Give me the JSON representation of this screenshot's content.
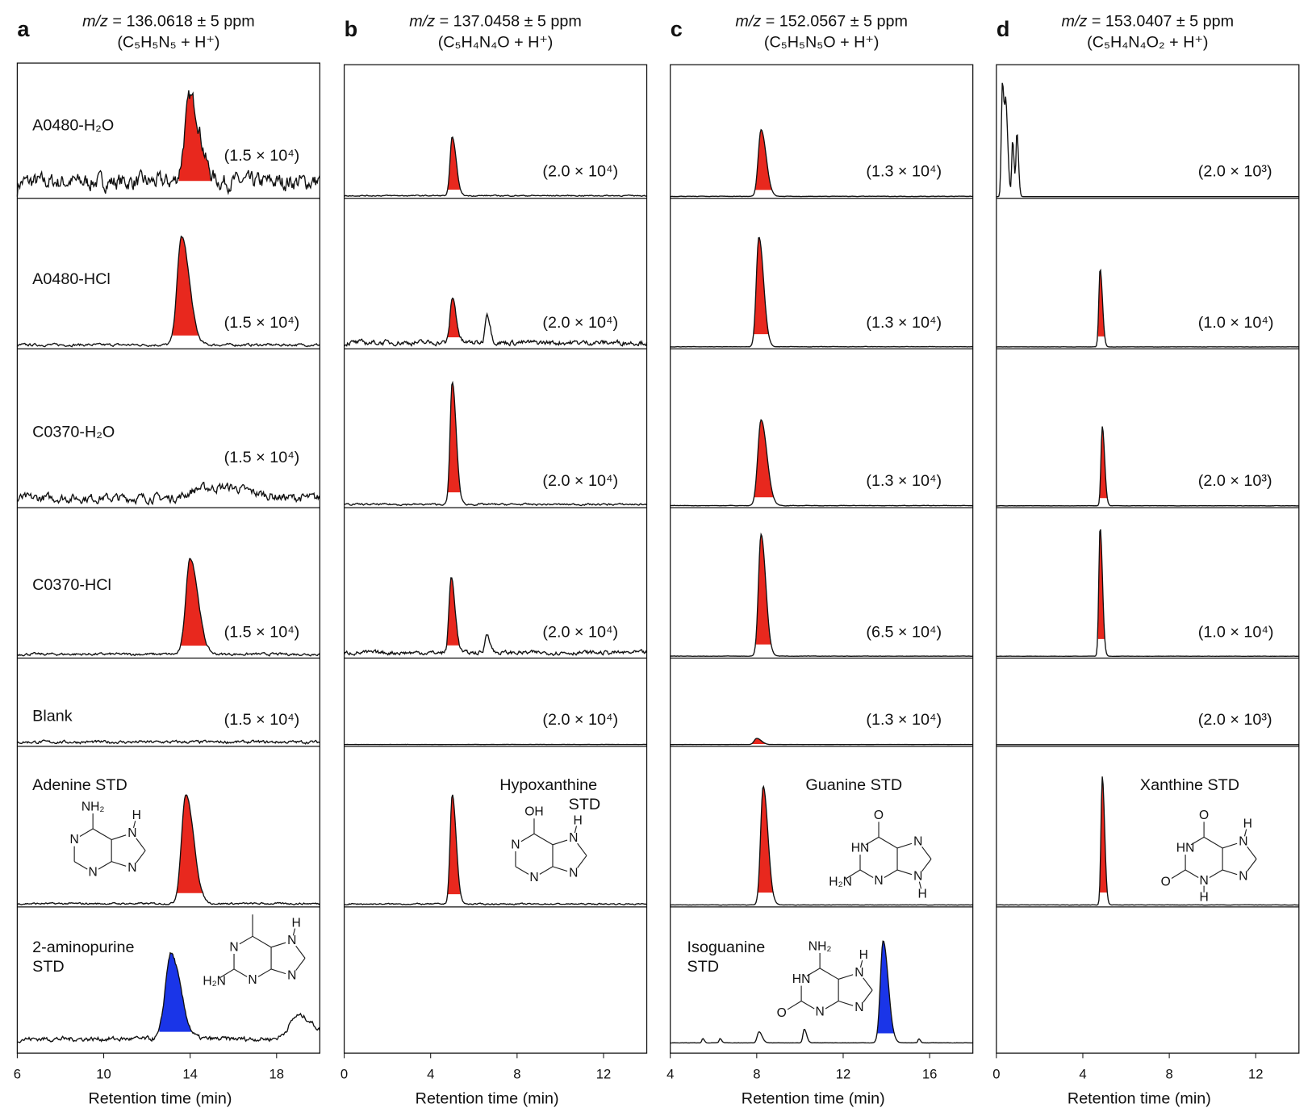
{
  "chart_data": [
    {
      "type": "line",
      "panel_letter": "a",
      "title_italic": "m/z",
      "title": " = 136.0618 ± 5 ppm",
      "subtitle": "(C₅H₅N₅ + H⁺)",
      "xlabel": "Retention time (min)",
      "xlim": [
        6,
        20
      ],
      "xticks": [
        6,
        10,
        14,
        18
      ],
      "rows": [
        {
          "label": [
            "A0480-H₂O"
          ],
          "scale": "(1.5 × 10⁴)",
          "noise": 0.22,
          "peaks": [
            {
              "rt": 14.0,
              "h": 0.62,
              "w": 0.25,
              "fill": "#e8281e"
            }
          ]
        },
        {
          "label": [
            "A0480-HCl"
          ],
          "scale": "(1.5 × 10⁴)",
          "noise": 0.03,
          "peaks": [
            {
              "rt": 13.6,
              "h": 0.72,
              "w": 0.2,
              "fill": "#e8281e"
            }
          ]
        },
        {
          "label": [
            "C0370-H₂O"
          ],
          "scale": "(1.5 × 10⁴)",
          "noise": 0.1,
          "peaks": [
            {
              "rt": 14.5,
              "h": 0.06,
              "w": 0.5
            },
            {
              "rt": 16.0,
              "h": 0.05,
              "w": 0.6
            }
          ]
        },
        {
          "label": [
            "C0370-HCl"
          ],
          "scale": "(1.5 × 10⁴)",
          "noise": 0.03,
          "peaks": [
            {
              "rt": 14.0,
              "h": 0.64,
              "w": 0.2,
              "fill": "#e8281e"
            }
          ]
        },
        {
          "label": [
            "Blank"
          ],
          "scale": "(1.5 × 10⁴)",
          "noise": 0.06,
          "peaks": []
        },
        {
          "label": [
            "Adenine STD"
          ],
          "scale": "",
          "noise": 0.02,
          "peaks": [
            {
              "rt": 13.8,
              "h": 0.68,
              "w": 0.2,
              "fill": "#e8281e"
            }
          ],
          "structure": {
            "sub6": "NH₂",
            "N1": "N",
            "N3": "N",
            "N7": "N",
            "H7": "H",
            "N9": "N"
          }
        },
        {
          "label": [
            "2-aminopurine",
            "STD"
          ],
          "scale": "",
          "noise": 0.06,
          "peaks": [
            {
              "rt": 13.1,
              "h": 0.62,
              "w": 0.25,
              "fill": "#1a35e8"
            },
            {
              "rt": 19.0,
              "h": 0.17,
              "w": 0.4
            }
          ],
          "structure": {
            "sub2": "H₂N",
            "N1": "N",
            "N3": "N",
            "N7": "N",
            "H7": "H",
            "N9": "N"
          }
        }
      ]
    },
    {
      "type": "line",
      "panel_letter": "b",
      "title_italic": "m/z",
      "title": " = 137.0458 ± 5 ppm",
      "subtitle": "(C₅H₄N₄O + H⁺)",
      "xlabel": "Retention time (min)",
      "xlim": [
        0,
        14
      ],
      "xticks": [
        0,
        4,
        8,
        12
      ],
      "rows": [
        {
          "scale": "(2.0 × 10⁴)",
          "noise": 0.015,
          "peaks": [
            {
              "rt": 5.0,
              "h": 0.44,
              "w": 0.1,
              "fill": "#e8281e"
            }
          ]
        },
        {
          "scale": "(2.0 × 10⁴)",
          "noise": 0.06,
          "peaks": [
            {
              "rt": 5.0,
              "h": 0.3,
              "w": 0.1,
              "fill": "#e8281e"
            },
            {
              "rt": 6.6,
              "h": 0.2,
              "w": 0.08
            }
          ]
        },
        {
          "scale": "(2.0 × 10⁴)",
          "noise": 0.02,
          "peaks": [
            {
              "rt": 5.0,
              "h": 0.77,
              "w": 0.1,
              "fill": "#e8281e"
            }
          ]
        },
        {
          "scale": "(2.0 × 10⁴)",
          "noise": 0.05,
          "peaks": [
            {
              "rt": 4.95,
              "h": 0.5,
              "w": 0.1,
              "fill": "#e8281e"
            },
            {
              "rt": 6.6,
              "h": 0.13,
              "w": 0.08
            }
          ]
        },
        {
          "scale": "(2.0 × 10⁴)",
          "noise": 0.005,
          "peaks": []
        },
        {
          "label": [
            "Hypoxanthine",
            "STD"
          ],
          "scale": "",
          "noise": 0.015,
          "peaks": [
            {
              "rt": 5.0,
              "h": 0.68,
              "w": 0.1,
              "fill": "#e8281e"
            }
          ],
          "structure": {
            "sub6": "OH",
            "N1": "N",
            "N3": "N",
            "N7": "N",
            "H7": "H",
            "N9": "N"
          }
        },
        {
          "scale": "",
          "empty": true,
          "peaks": []
        }
      ]
    },
    {
      "type": "line",
      "panel_letter": "c",
      "title_italic": "m/z",
      "title": " = 152.0567 ± 5 ppm",
      "subtitle": "(C₅H₅N₅O + H⁺)",
      "xlabel": "Retention time (min)",
      "xlim": [
        4,
        18
      ],
      "xticks": [
        4,
        8,
        12,
        16
      ],
      "rows": [
        {
          "scale": "(1.3 × 10⁴)",
          "noise": 0.005,
          "peaks": [
            {
              "rt": 8.2,
              "h": 0.5,
              "w": 0.13,
              "fill": "#e8281e"
            }
          ]
        },
        {
          "scale": "(1.3 × 10⁴)",
          "noise": 0.005,
          "peaks": [
            {
              "rt": 8.1,
              "h": 0.73,
              "w": 0.12,
              "fill": "#e8281e"
            }
          ]
        },
        {
          "scale": "(1.3 × 10⁴)",
          "noise": 0.005,
          "peaks": [
            {
              "rt": 8.2,
              "h": 0.54,
              "w": 0.15,
              "fill": "#e8281e"
            }
          ]
        },
        {
          "scale": "(6.5 × 10⁴)",
          "noise": 0.004,
          "peaks": [
            {
              "rt": 8.2,
              "h": 0.81,
              "w": 0.12,
              "fill": "#e8281e"
            }
          ]
        },
        {
          "scale": "(1.3 × 10⁴)",
          "noise": 0.004,
          "peaks": [
            {
              "rt": 8.0,
              "h": 0.07,
              "w": 0.12,
              "fill": "#e8281e"
            }
          ]
        },
        {
          "label": [
            "Guanine STD"
          ],
          "scale": "",
          "noise": 0.004,
          "peaks": [
            {
              "rt": 8.3,
              "h": 0.74,
              "w": 0.12,
              "fill": "#e8281e"
            }
          ],
          "structure": {
            "sub6": "O",
            "N1": "HN",
            "sub2": "H₂N",
            "N3": "N",
            "N7": "N",
            "N9": "N",
            "H9": "H"
          }
        },
        {
          "label": [
            "Isoguanine",
            "STD"
          ],
          "scale": "",
          "noise": 0.004,
          "peaks": [
            {
              "rt": 13.85,
              "h": 0.74,
              "w": 0.13,
              "fill": "#1a35e8"
            },
            {
              "rt": 8.1,
              "h": 0.08,
              "w": 0.08
            },
            {
              "rt": 10.2,
              "h": 0.1,
              "w": 0.06
            },
            {
              "rt": 5.5,
              "h": 0.03,
              "w": 0.04
            },
            {
              "rt": 6.3,
              "h": 0.03,
              "w": 0.04
            },
            {
              "rt": 15.5,
              "h": 0.03,
              "w": 0.04
            }
          ],
          "structure": {
            "sub6": "NH₂",
            "N1": "HN",
            "sub2": "O",
            "N3": "N",
            "N7": "N",
            "H7": "H",
            "N9": "N"
          }
        }
      ]
    },
    {
      "type": "line",
      "panel_letter": "d",
      "title_italic": "m/z",
      "title": " = 153.0407 ± 5 ppm",
      "subtitle": "(C₅H₄N₄O₂ + H⁺)",
      "xlabel": "Retention time (min)",
      "xlim": [
        0,
        14
      ],
      "xticks": [
        0,
        4,
        8,
        12
      ],
      "rows": [
        {
          "scale": "(2.0 × 10³)",
          "noise": 0.0,
          "peaks": [
            {
              "rt": 0.28,
              "h": 0.86,
              "w": 0.05
            },
            {
              "rt": 0.45,
              "h": 0.58,
              "w": 0.05
            },
            {
              "rt": 0.75,
              "h": 0.42,
              "w": 0.04
            },
            {
              "rt": 0.95,
              "h": 0.48,
              "w": 0.04
            }
          ]
        },
        {
          "scale": "(1.0 × 10⁴)",
          "noise": 0.003,
          "peaks": [
            {
              "rt": 4.8,
              "h": 0.52,
              "w": 0.06,
              "fill": "#e8281e"
            }
          ]
        },
        {
          "scale": "(2.0 × 10³)",
          "noise": 0.003,
          "peaks": [
            {
              "rt": 4.9,
              "h": 0.5,
              "w": 0.06,
              "fill": "#e8281e"
            }
          ]
        },
        {
          "scale": "(1.0 × 10⁴)",
          "noise": 0.003,
          "peaks": [
            {
              "rt": 4.8,
              "h": 0.86,
              "w": 0.06,
              "fill": "#e8281e"
            }
          ]
        },
        {
          "scale": "(2.0 × 10³)",
          "noise": 0.0,
          "peaks": []
        },
        {
          "label": [
            "Xanthine STD"
          ],
          "scale": "",
          "noise": 0.004,
          "peaks": [
            {
              "rt": 4.9,
              "h": 0.8,
              "w": 0.06,
              "fill": "#e8281e"
            }
          ],
          "structure": {
            "sub6": "O",
            "N1": "HN",
            "sub2": "O",
            "N3": "N",
            "H3": "H",
            "N7": "N",
            "H7": "H",
            "N9": "N"
          }
        },
        {
          "scale": "",
          "empty": true,
          "peaks": []
        }
      ]
    }
  ]
}
